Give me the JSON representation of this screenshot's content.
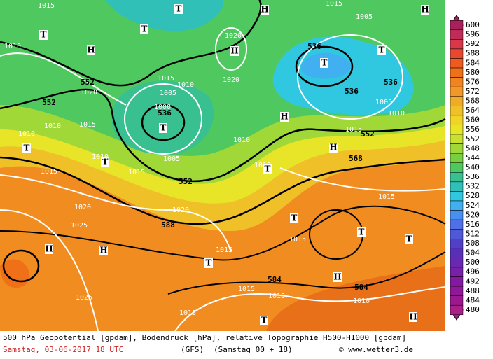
{
  "map": {
    "labels": [
      "T",
      "1010",
      "H",
      "552",
      "1020",
      "552",
      "1010",
      "1015",
      "1010",
      "T",
      "T",
      "1015",
      "1010",
      "1015",
      "552",
      "1020",
      "588",
      "1020",
      "1025",
      "H",
      "H",
      "1025",
      "T",
      "1015",
      "1015",
      "1015",
      "1010",
      "584",
      "T",
      "H",
      "584",
      "1010",
      "H",
      "T",
      "T",
      "T",
      "1015",
      "1015",
      "568",
      "H",
      "552",
      "1015",
      "1010",
      "1005",
      "536",
      "536",
      "T",
      "536",
      "T",
      "1020",
      "H",
      "1020",
      "T",
      "1015",
      "1010",
      "1005",
      "1000",
      "536",
      "T",
      "1005",
      "1010",
      "1010",
      "T",
      "H",
      "1005",
      "1015",
      "H",
      "1015",
      "T",
      "H"
    ]
  },
  "colorbar": {
    "levels": [
      600,
      596,
      592,
      588,
      584,
      580,
      576,
      572,
      568,
      564,
      560,
      556,
      552,
      548,
      544,
      540,
      536,
      532,
      528,
      524,
      520,
      516,
      512,
      508,
      504,
      500,
      496,
      492,
      488,
      484,
      480
    ],
    "colors": [
      "#a8205c",
      "#c02c58",
      "#d83848",
      "#e84830",
      "#f05a20",
      "#f07018",
      "#f08420",
      "#f09828",
      "#f0ac28",
      "#f0c028",
      "#f0d428",
      "#e8e428",
      "#c8e030",
      "#a0d838",
      "#78d040",
      "#50c860",
      "#38c090",
      "#30c0b8",
      "#30c8e0",
      "#40b0f0",
      "#4890f0",
      "#5070e8",
      "#5058d8",
      "#5040c8",
      "#5830b8",
      "#6828b0",
      "#7820a8",
      "#8418a0",
      "#901898",
      "#9c1890",
      "#a82088"
    ]
  },
  "footer": {
    "description": "500 hPa Geopotential [gpdam], Bodendruck [hPa], relative Topographie H500-H1000 [gpdam]",
    "date": "Samstag, 03-06-2017  18 UTC",
    "model": "(GFS)",
    "run": "(Samstag 00 + 18)",
    "credit": "© www.wetter3.de"
  }
}
